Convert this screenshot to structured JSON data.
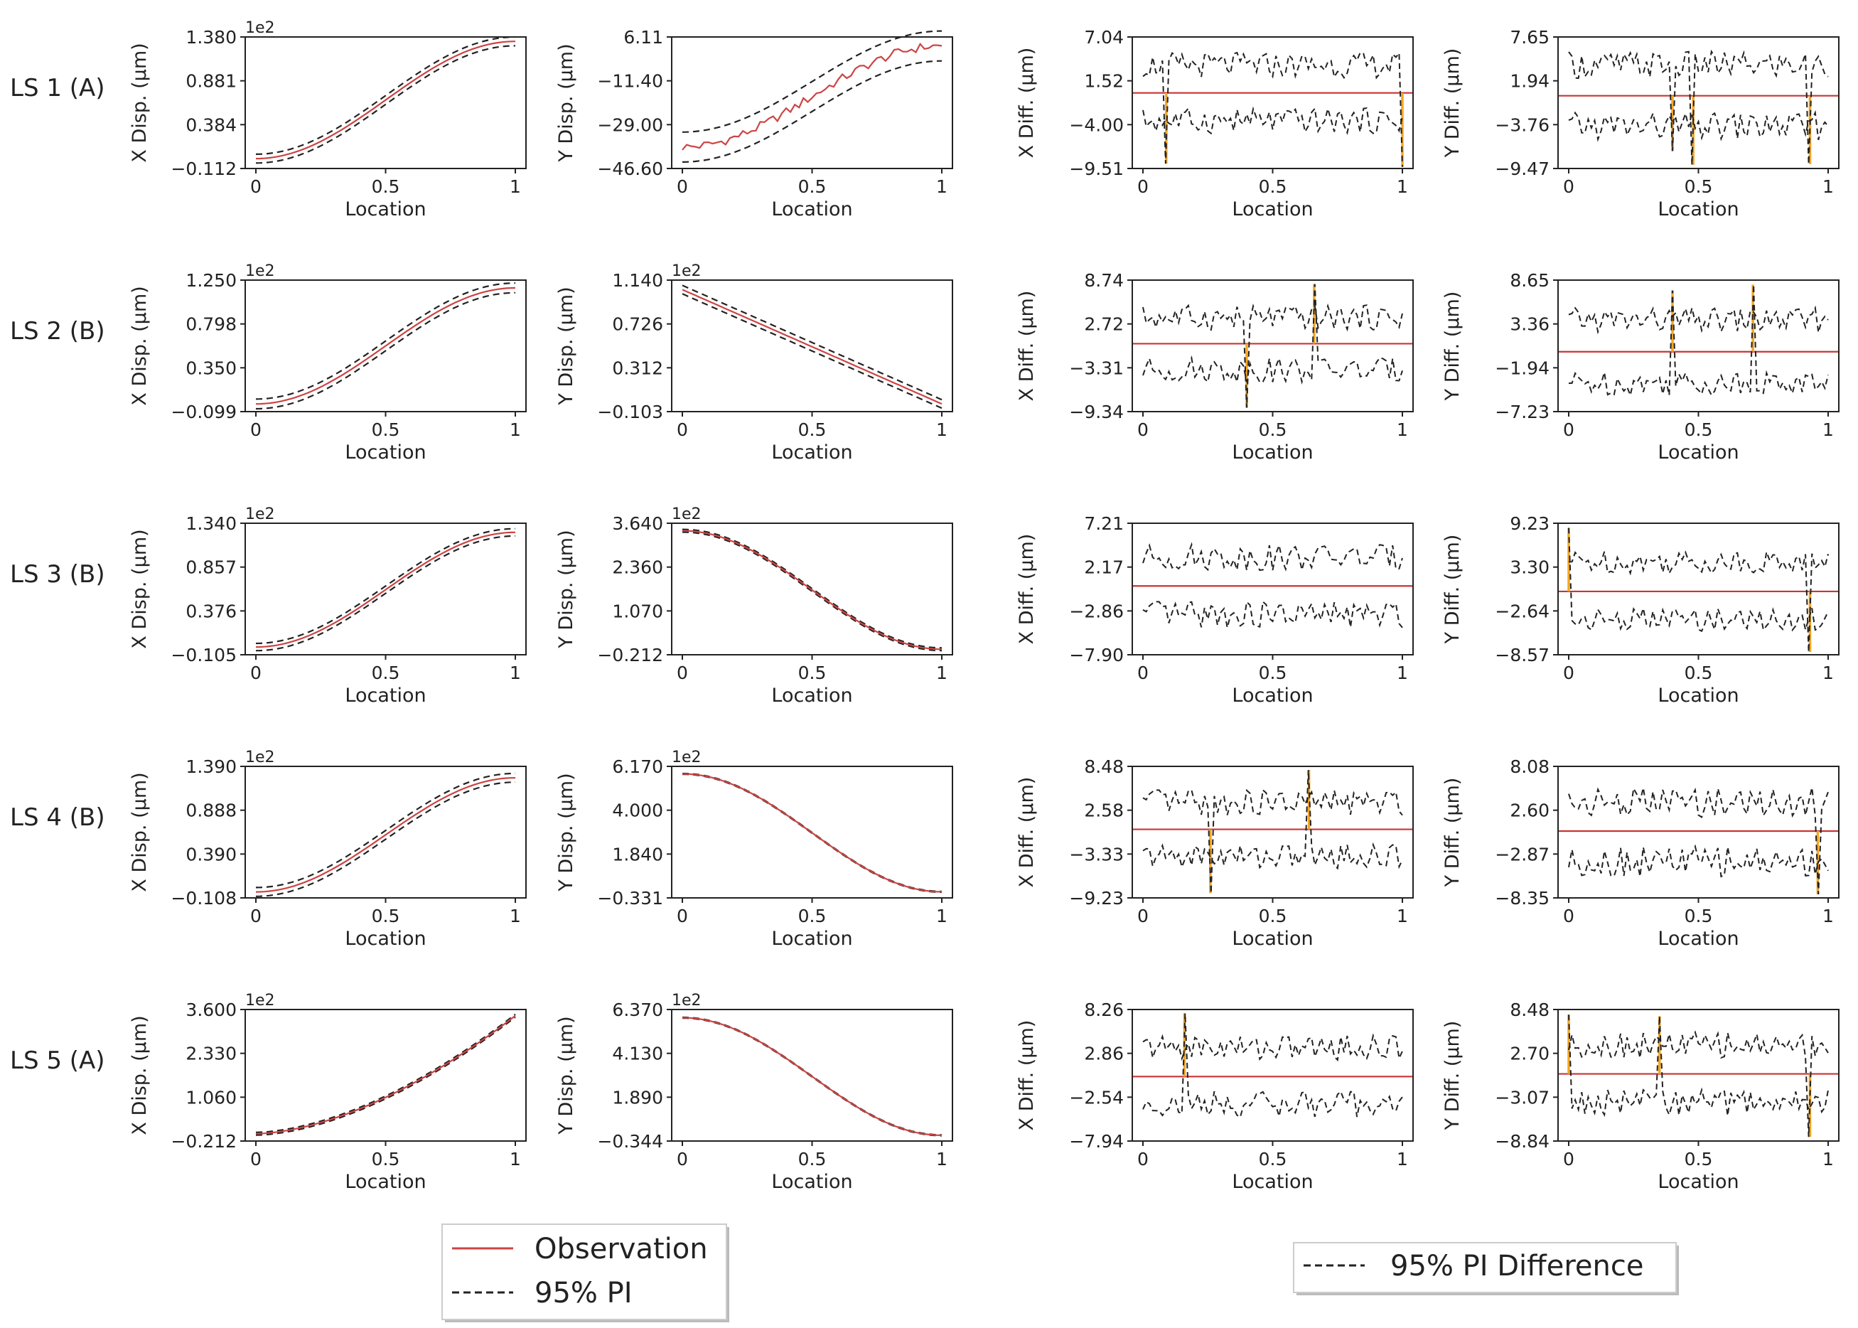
{
  "legends": {
    "left": {
      "observation_label": "Observation",
      "pi_label": "95% PI"
    },
    "right": {
      "diff_label": "95% PI Difference"
    }
  },
  "colors": {
    "observation": "#cc4444",
    "pi": "#222222",
    "exceedance": "#f5a623",
    "zero_line": "#cc3333"
  },
  "common": {
    "xlabel": "Location",
    "xticks": [
      "0",
      "0.5",
      "1"
    ],
    "multiplier": "1e2"
  },
  "row_labels": [
    "LS 1 (A)",
    "LS 2 (B)",
    "LS 3 (B)",
    "LS 4 (B)",
    "LS 5 (A)"
  ],
  "chart_data": [
    {
      "row": 0,
      "col": 0,
      "type": "line",
      "ylabel": "X Disp. (μm)",
      "yticks": [
        "1.380",
        "0.881",
        "0.384",
        "−0.112"
      ],
      "ylim": [
        -0.112,
        1.38
      ],
      "multiplier": "1e2",
      "shape": "sigmoid",
      "start": 0.0,
      "end": 1.33,
      "band": 0.05,
      "noise": 0
    },
    {
      "row": 0,
      "col": 1,
      "type": "line",
      "ylabel": "Y Disp. (μm)",
      "yticks": [
        "6.11",
        "−11.40",
        "−29.00",
        "−46.60"
      ],
      "ylim": [
        -46.6,
        6.11
      ],
      "multiplier": "",
      "shape": "sigmoid",
      "start": -38.0,
      "end": 2.5,
      "band": 6.0,
      "noise": 1.8
    },
    {
      "row": 0,
      "col": 2,
      "type": "diff",
      "ylabel": "X Diff. (μm)",
      "yticks": [
        "7.04",
        "1.52",
        "−4.00",
        "−9.51"
      ],
      "ylim": [
        -9.51,
        7.04
      ],
      "zero": 0.0,
      "upper_base": 3.5,
      "lower_base": -3.5,
      "amp": 1.6,
      "exceed": [
        [
          0.09,
          -8.9
        ],
        [
          1.0,
          -9.3
        ]
      ]
    },
    {
      "row": 0,
      "col": 3,
      "type": "diff",
      "ylabel": "Y Diff. (μm)",
      "yticks": [
        "7.65",
        "1.94",
        "−3.76",
        "−9.47"
      ],
      "ylim": [
        -9.47,
        7.65
      ],
      "zero": 0.0,
      "upper_base": 4.0,
      "lower_base": -4.0,
      "amp": 1.8,
      "exceed": [
        [
          0.4,
          -7.2
        ],
        [
          0.48,
          -9.0
        ],
        [
          0.93,
          -8.9
        ]
      ]
    },
    {
      "row": 1,
      "col": 0,
      "type": "line",
      "ylabel": "X Disp. (μm)",
      "yticks": [
        "1.250",
        "0.798",
        "0.350",
        "−0.099"
      ],
      "ylim": [
        -0.099,
        1.25
      ],
      "multiplier": "1e2",
      "shape": "sigmoid",
      "start": -0.02,
      "end": 1.17,
      "band": 0.05,
      "noise": 0
    },
    {
      "row": 1,
      "col": 1,
      "type": "line",
      "ylabel": "Y Disp. (μm)",
      "yticks": [
        "1.140",
        "0.726",
        "0.312",
        "−0.103"
      ],
      "ylim": [
        -0.103,
        1.14
      ],
      "multiplier": "1e2",
      "shape": "linear",
      "start": 1.05,
      "end": -0.03,
      "band": 0.04,
      "noise": 0
    },
    {
      "row": 1,
      "col": 2,
      "type": "diff",
      "ylabel": "X Diff. (μm)",
      "yticks": [
        "8.74",
        "2.72",
        "−3.31",
        "−9.34"
      ],
      "ylim": [
        -9.34,
        8.74
      ],
      "zero": 0.0,
      "upper_base": 3.6,
      "lower_base": -3.6,
      "amp": 1.7,
      "exceed": [
        [
          0.4,
          -8.8
        ],
        [
          0.66,
          8.2
        ]
      ]
    },
    {
      "row": 1,
      "col": 3,
      "type": "diff",
      "ylabel": "Y Diff. (μm)",
      "yticks": [
        "8.65",
        "3.36",
        "−1.94",
        "−7.23"
      ],
      "ylim": [
        -7.23,
        8.65
      ],
      "zero": 0.0,
      "upper_base": 3.8,
      "lower_base": -3.8,
      "amp": 1.5,
      "exceed": [
        [
          0.4,
          7.4
        ],
        [
          0.71,
          8.1
        ]
      ]
    },
    {
      "row": 2,
      "col": 0,
      "type": "line",
      "ylabel": "X Disp. (μm)",
      "yticks": [
        "1.340",
        "0.857",
        "0.376",
        "−0.105"
      ],
      "ylim": [
        -0.105,
        1.34
      ],
      "multiplier": "1e2",
      "shape": "sigmoid",
      "start": -0.02,
      "end": 1.24,
      "band": 0.04,
      "noise": 0
    },
    {
      "row": 2,
      "col": 1,
      "type": "line",
      "ylabel": "Y Disp. (μm)",
      "yticks": [
        "3.640",
        "2.360",
        "1.070",
        "−0.212"
      ],
      "ylim": [
        -0.212,
        3.64
      ],
      "multiplier": "1e2",
      "shape": "sigmoid",
      "start": 3.42,
      "end": -0.05,
      "band": 0.04,
      "noise": 0
    },
    {
      "row": 2,
      "col": 2,
      "type": "diff",
      "ylabel": "X Diff. (μm)",
      "yticks": [
        "7.21",
        "2.17",
        "−2.86",
        "−7.90"
      ],
      "ylim": [
        -7.9,
        7.21
      ],
      "zero": 0.0,
      "upper_base": 3.3,
      "lower_base": -3.3,
      "amp": 1.5,
      "exceed": []
    },
    {
      "row": 2,
      "col": 3,
      "type": "diff",
      "ylabel": "Y Diff. (μm)",
      "yticks": [
        "9.23",
        "3.30",
        "−2.64",
        "−8.57"
      ],
      "ylim": [
        -8.57,
        9.23
      ],
      "zero": 0.0,
      "upper_base": 4.0,
      "lower_base": -3.8,
      "amp": 1.6,
      "exceed": [
        [
          0.0,
          8.6
        ],
        [
          0.93,
          -8.2
        ]
      ]
    },
    {
      "row": 3,
      "col": 0,
      "type": "line",
      "ylabel": "X Disp. (μm)",
      "yticks": [
        "1.390",
        "0.888",
        "0.390",
        "−0.108"
      ],
      "ylim": [
        -0.108,
        1.39
      ],
      "multiplier": "1e2",
      "shape": "sigmoid",
      "start": -0.04,
      "end": 1.26,
      "band": 0.05,
      "noise": 0
    },
    {
      "row": 3,
      "col": 1,
      "type": "line",
      "ylabel": "Y Disp. (μm)",
      "yticks": [
        "6.170",
        "4.000",
        "1.840",
        "−0.331"
      ],
      "ylim": [
        -0.331,
        6.17
      ],
      "multiplier": "1e2",
      "shape": "sigmoid",
      "start": 5.8,
      "end": -0.03,
      "band": 0.02,
      "noise": 0
    },
    {
      "row": 3,
      "col": 2,
      "type": "diff",
      "ylabel": "X Diff. (μm)",
      "yticks": [
        "8.48",
        "2.58",
        "−3.33",
        "−9.23"
      ],
      "ylim": [
        -9.23,
        8.48
      ],
      "zero": 0.0,
      "upper_base": 3.6,
      "lower_base": -3.6,
      "amp": 1.7,
      "exceed": [
        [
          0.26,
          -8.6
        ],
        [
          0.64,
          8.0
        ]
      ]
    },
    {
      "row": 3,
      "col": 3,
      "type": "diff",
      "ylabel": "Y Diff. (μm)",
      "yticks": [
        "8.08",
        "2.60",
        "−2.87",
        "−8.35"
      ],
      "ylim": [
        -8.35,
        8.08
      ],
      "zero": 0.0,
      "upper_base": 3.6,
      "lower_base": -3.8,
      "amp": 1.9,
      "exceed": [
        [
          0.96,
          -7.9
        ]
      ]
    },
    {
      "row": 4,
      "col": 0,
      "type": "line",
      "ylabel": "X Disp. (μm)",
      "yticks": [
        "3.600",
        "2.330",
        "1.060",
        "−0.212"
      ],
      "ylim": [
        -0.212,
        3.6
      ],
      "multiplier": "1e2",
      "shape": "power",
      "start": 0.0,
      "end": 3.42,
      "band": 0.04,
      "noise": 0
    },
    {
      "row": 4,
      "col": 1,
      "type": "line",
      "ylabel": "Y Disp. (μm)",
      "yticks": [
        "6.370",
        "4.130",
        "1.890",
        "−0.344"
      ],
      "ylim": [
        -0.344,
        6.37
      ],
      "multiplier": "1e2",
      "shape": "sigmoid",
      "start": 5.95,
      "end": -0.05,
      "band": 0.02,
      "noise": 0
    },
    {
      "row": 4,
      "col": 2,
      "type": "diff",
      "ylabel": "X Diff. (μm)",
      "yticks": [
        "8.26",
        "2.86",
        "−2.54",
        "−7.94"
      ],
      "ylim": [
        -7.94,
        8.26
      ],
      "zero": 0.0,
      "upper_base": 3.6,
      "lower_base": -3.4,
      "amp": 1.6,
      "exceed": [
        [
          0.16,
          7.8
        ]
      ]
    },
    {
      "row": 4,
      "col": 3,
      "type": "diff",
      "ylabel": "Y Diff. (μm)",
      "yticks": [
        "8.48",
        "2.70",
        "−3.07",
        "−8.84"
      ],
      "ylim": [
        -8.84,
        8.48
      ],
      "zero": 0.0,
      "upper_base": 3.8,
      "lower_base": -3.8,
      "amp": 1.7,
      "exceed": [
        [
          0.0,
          7.8
        ],
        [
          0.35,
          7.6
        ],
        [
          0.93,
          -8.3
        ]
      ]
    }
  ]
}
